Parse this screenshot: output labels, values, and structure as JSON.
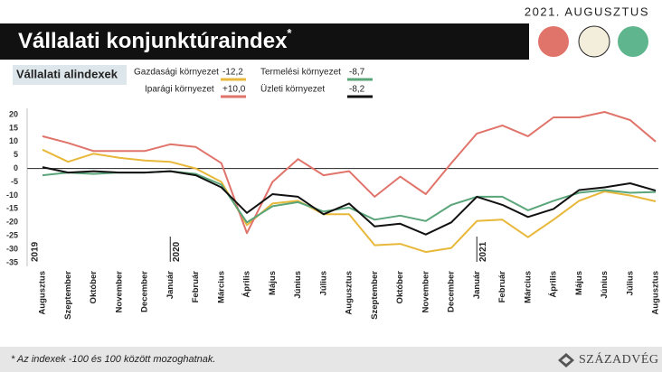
{
  "chart_data": {
    "type": "line",
    "date_label": "2021. AUGUSZTUS",
    "title": "Vállalati konjunktúraindex",
    "title_mark": "*",
    "subtitle": "Vállalati alindexek",
    "footnote": "* Az indexek -100 és 100 között mozoghatnak.",
    "logo": "SZÁZADVÉG",
    "categories": [
      "Augusztus",
      "Szeptember",
      "Október",
      "November",
      "December",
      "Január",
      "Február",
      "Március",
      "Április",
      "Május",
      "Június",
      "Július",
      "Augusztus",
      "Szeptember",
      "Október",
      "November",
      "December",
      "Január",
      "Február",
      "Március",
      "Április",
      "Május",
      "Június",
      "Július",
      "Augusztus"
    ],
    "years": [
      "2019",
      null,
      null,
      null,
      null,
      "2020",
      null,
      null,
      null,
      null,
      null,
      null,
      null,
      null,
      null,
      null,
      null,
      "2021",
      null,
      null,
      null,
      null,
      null,
      null,
      null
    ],
    "ylim": [
      -35,
      20
    ],
    "yticks": [
      20,
      15,
      10,
      5,
      0,
      -5,
      -10,
      -15,
      -20,
      -25,
      -30,
      -35
    ],
    "series": [
      {
        "name": "Gazdasági környezet",
        "legend_value": "-12,2",
        "color": "#e8b83a",
        "values": [
          7,
          2.5,
          5.5,
          4,
          3,
          2.5,
          0,
          -5,
          -21,
          -13,
          -12,
          -17,
          -17,
          -28.5,
          -28,
          -31,
          -29.5,
          -19.5,
          -19,
          -25.5,
          -19,
          -12,
          -8.5,
          -10,
          -12.2
        ]
      },
      {
        "name": "Iparági környezet",
        "legend_value": "+10,0",
        "color": "#e0736a",
        "values": [
          12,
          9.5,
          6.5,
          6.5,
          6.5,
          9,
          8,
          2,
          -24,
          -5,
          3.5,
          -2.5,
          -1,
          -10.5,
          -3,
          -9.5,
          2,
          13,
          16,
          12,
          19,
          19,
          21,
          18,
          10
        ]
      },
      {
        "name": "Termelési környezet",
        "legend_value": "-8,7",
        "color": "#5aa57a",
        "values": [
          -2.5,
          -1.5,
          -2,
          -1.5,
          -1.5,
          -1,
          -2,
          -6,
          -20,
          -14,
          -12.5,
          -16,
          -14.5,
          -19,
          -17.5,
          -19.5,
          -13.5,
          -10.5,
          -10.5,
          -15.5,
          -12,
          -9,
          -8,
          -9,
          -8.7
        ]
      },
      {
        "name": "Üzleti környezet",
        "legend_value": "-8,2",
        "color": "#111111",
        "values": [
          0.5,
          -1.5,
          -1,
          -1.5,
          -1.5,
          -1,
          -2.5,
          -7,
          -16.5,
          -9.5,
          -10.5,
          -17,
          -13,
          -21.5,
          -20.5,
          -24.5,
          -20,
          -10.5,
          -13.5,
          -18,
          -15,
          -8,
          -7,
          -5.5,
          -8.2
        ]
      }
    ]
  }
}
